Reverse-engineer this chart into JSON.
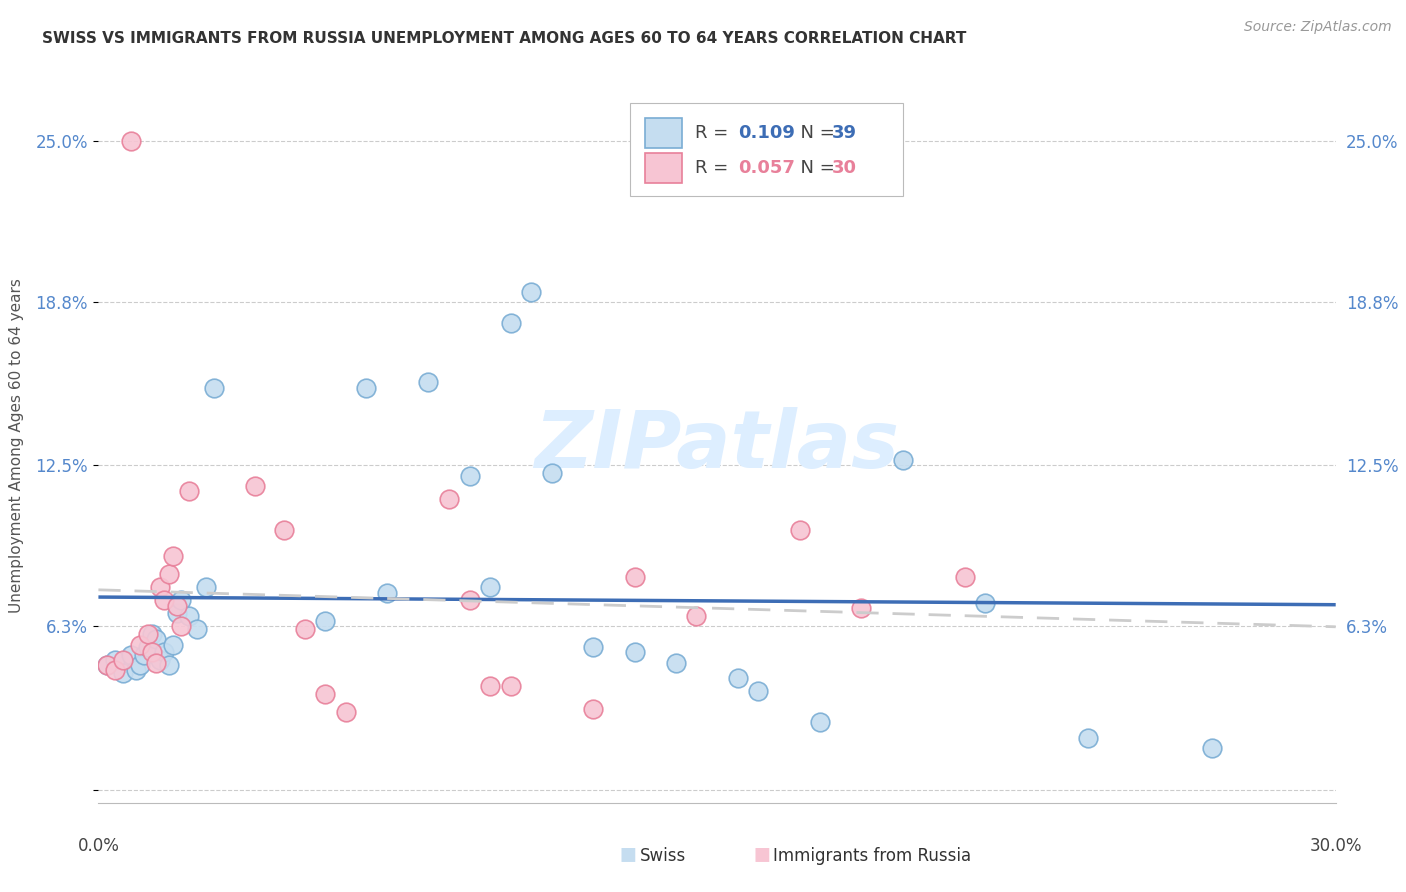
{
  "title": "SWISS VS IMMIGRANTS FROM RUSSIA UNEMPLOYMENT AMONG AGES 60 TO 64 YEARS CORRELATION CHART",
  "source": "Source: ZipAtlas.com",
  "ylabel": "Unemployment Among Ages 60 to 64 years",
  "xlim": [
    0.0,
    0.3
  ],
  "ylim": [
    -0.005,
    0.27
  ],
  "ytick_vals": [
    0.0,
    0.063,
    0.125,
    0.188,
    0.25
  ],
  "ytick_labels": [
    "",
    "6.3%",
    "12.5%",
    "18.8%",
    "25.0%"
  ],
  "swiss_R": "0.109",
  "swiss_N": "39",
  "russia_R": "0.057",
  "russia_N": "30",
  "swiss_face_color": "#c5ddf0",
  "swiss_edge_color": "#7aadd4",
  "russia_face_color": "#f7c5d3",
  "russia_edge_color": "#e8809a",
  "swiss_line_color": "#3d6db5",
  "russia_line_color": "#cccccc",
  "russia_line_solid_color": "#e8809a",
  "watermark_color": "#ddeeff",
  "swiss_x": [
    0.002,
    0.004,
    0.006,
    0.008,
    0.009,
    0.01,
    0.011,
    0.012,
    0.013,
    0.014,
    0.015,
    0.016,
    0.017,
    0.018,
    0.019,
    0.02,
    0.022,
    0.024,
    0.026,
    0.028,
    0.055,
    0.065,
    0.07,
    0.08,
    0.09,
    0.095,
    0.1,
    0.105,
    0.11,
    0.12,
    0.13,
    0.14,
    0.155,
    0.16,
    0.175,
    0.195,
    0.215,
    0.24,
    0.27
  ],
  "swiss_y": [
    0.048,
    0.05,
    0.045,
    0.052,
    0.046,
    0.048,
    0.052,
    0.055,
    0.06,
    0.058,
    0.05,
    0.053,
    0.048,
    0.056,
    0.068,
    0.073,
    0.067,
    0.062,
    0.078,
    0.155,
    0.065,
    0.155,
    0.076,
    0.157,
    0.121,
    0.078,
    0.18,
    0.192,
    0.122,
    0.055,
    0.053,
    0.049,
    0.043,
    0.038,
    0.026,
    0.127,
    0.072,
    0.02,
    0.016
  ],
  "russia_x": [
    0.002,
    0.004,
    0.006,
    0.008,
    0.01,
    0.012,
    0.013,
    0.014,
    0.015,
    0.016,
    0.017,
    0.018,
    0.019,
    0.02,
    0.022,
    0.038,
    0.045,
    0.05,
    0.055,
    0.06,
    0.085,
    0.09,
    0.095,
    0.1,
    0.12,
    0.13,
    0.145,
    0.17,
    0.185,
    0.21
  ],
  "russia_y": [
    0.048,
    0.046,
    0.05,
    0.25,
    0.056,
    0.06,
    0.053,
    0.049,
    0.078,
    0.073,
    0.083,
    0.09,
    0.071,
    0.063,
    0.115,
    0.117,
    0.1,
    0.062,
    0.037,
    0.03,
    0.112,
    0.073,
    0.04,
    0.04,
    0.031,
    0.082,
    0.067,
    0.1,
    0.07,
    0.082
  ]
}
